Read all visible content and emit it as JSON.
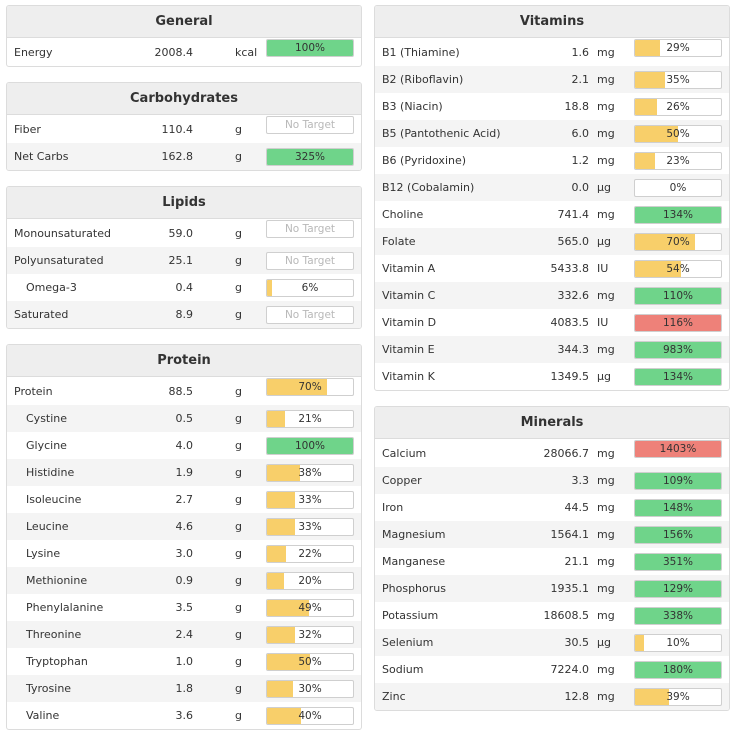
{
  "colors": {
    "ok": "#6fd48a",
    "low": "#f8cf6a",
    "high": "#ee8179"
  },
  "general": {
    "title": "General",
    "rows": [
      {
        "name": "Energy",
        "value": "2008.4",
        "unit": "kcal",
        "pct": "100%",
        "fill": 1.0,
        "status": "ok"
      }
    ]
  },
  "carbohydrates": {
    "title": "Carbohydrates",
    "rows": [
      {
        "name": "Fiber",
        "value": "110.4",
        "unit": "g",
        "pct": "No Target",
        "fill": 0,
        "status": "none"
      },
      {
        "name": "Net Carbs",
        "value": "162.8",
        "unit": "g",
        "pct": "325%",
        "fill": 1.0,
        "status": "ok"
      }
    ]
  },
  "lipids": {
    "title": "Lipids",
    "rows": [
      {
        "name": "Monounsaturated",
        "value": "59.0",
        "unit": "g",
        "pct": "No Target",
        "fill": 0,
        "status": "none"
      },
      {
        "name": "Polyunsaturated",
        "value": "25.1",
        "unit": "g",
        "pct": "No Target",
        "fill": 0,
        "status": "none"
      },
      {
        "name": "Omega-3",
        "value": "0.4",
        "unit": "g",
        "pct": "6%",
        "fill": 0.06,
        "status": "low",
        "sub": true
      },
      {
        "name": "Saturated",
        "value": "8.9",
        "unit": "g",
        "pct": "No Target",
        "fill": 0,
        "status": "none"
      }
    ]
  },
  "protein": {
    "title": "Protein",
    "rows": [
      {
        "name": "Protein",
        "value": "88.5",
        "unit": "g",
        "pct": "70%",
        "fill": 0.7,
        "status": "low"
      },
      {
        "name": "Cystine",
        "value": "0.5",
        "unit": "g",
        "pct": "21%",
        "fill": 0.21,
        "status": "low",
        "sub": true
      },
      {
        "name": "Glycine",
        "value": "4.0",
        "unit": "g",
        "pct": "100%",
        "fill": 1.0,
        "status": "ok",
        "sub": true
      },
      {
        "name": "Histidine",
        "value": "1.9",
        "unit": "g",
        "pct": "38%",
        "fill": 0.38,
        "status": "low",
        "sub": true
      },
      {
        "name": "Isoleucine",
        "value": "2.7",
        "unit": "g",
        "pct": "33%",
        "fill": 0.33,
        "status": "low",
        "sub": true
      },
      {
        "name": "Leucine",
        "value": "4.6",
        "unit": "g",
        "pct": "33%",
        "fill": 0.33,
        "status": "low",
        "sub": true
      },
      {
        "name": "Lysine",
        "value": "3.0",
        "unit": "g",
        "pct": "22%",
        "fill": 0.22,
        "status": "low",
        "sub": true
      },
      {
        "name": "Methionine",
        "value": "0.9",
        "unit": "g",
        "pct": "20%",
        "fill": 0.2,
        "status": "low",
        "sub": true
      },
      {
        "name": "Phenylalanine",
        "value": "3.5",
        "unit": "g",
        "pct": "49%",
        "fill": 0.49,
        "status": "low",
        "sub": true
      },
      {
        "name": "Threonine",
        "value": "2.4",
        "unit": "g",
        "pct": "32%",
        "fill": 0.32,
        "status": "low",
        "sub": true
      },
      {
        "name": "Tryptophan",
        "value": "1.0",
        "unit": "g",
        "pct": "50%",
        "fill": 0.5,
        "status": "low",
        "sub": true
      },
      {
        "name": "Tyrosine",
        "value": "1.8",
        "unit": "g",
        "pct": "30%",
        "fill": 0.3,
        "status": "low",
        "sub": true
      },
      {
        "name": "Valine",
        "value": "3.6",
        "unit": "g",
        "pct": "40%",
        "fill": 0.4,
        "status": "low",
        "sub": true
      }
    ]
  },
  "vitamins": {
    "title": "Vitamins",
    "rows": [
      {
        "name": "B1 (Thiamine)",
        "value": "1.6",
        "unit": "mg",
        "pct": "29%",
        "fill": 0.29,
        "status": "low"
      },
      {
        "name": "B2 (Riboflavin)",
        "value": "2.1",
        "unit": "mg",
        "pct": "35%",
        "fill": 0.35,
        "status": "low"
      },
      {
        "name": "B3 (Niacin)",
        "value": "18.8",
        "unit": "mg",
        "pct": "26%",
        "fill": 0.26,
        "status": "low"
      },
      {
        "name": "B5 (Pantothenic Acid)",
        "value": "6.0",
        "unit": "mg",
        "pct": "50%",
        "fill": 0.5,
        "status": "low"
      },
      {
        "name": "B6 (Pyridoxine)",
        "value": "1.2",
        "unit": "mg",
        "pct": "23%",
        "fill": 0.23,
        "status": "low"
      },
      {
        "name": "B12 (Cobalamin)",
        "value": "0.0",
        "unit": "µg",
        "pct": "0%",
        "fill": 0,
        "status": "low"
      },
      {
        "name": "Choline",
        "value": "741.4",
        "unit": "mg",
        "pct": "134%",
        "fill": 1.0,
        "status": "ok"
      },
      {
        "name": "Folate",
        "value": "565.0",
        "unit": "µg",
        "pct": "70%",
        "fill": 0.7,
        "status": "low"
      },
      {
        "name": "Vitamin A",
        "value": "5433.8",
        "unit": "IU",
        "pct": "54%",
        "fill": 0.54,
        "status": "low"
      },
      {
        "name": "Vitamin C",
        "value": "332.6",
        "unit": "mg",
        "pct": "110%",
        "fill": 1.0,
        "status": "ok"
      },
      {
        "name": "Vitamin D",
        "value": "4083.5",
        "unit": "IU",
        "pct": "116%",
        "fill": 1.0,
        "status": "high"
      },
      {
        "name": "Vitamin E",
        "value": "344.3",
        "unit": "mg",
        "pct": "983%",
        "fill": 1.0,
        "status": "ok"
      },
      {
        "name": "Vitamin K",
        "value": "1349.5",
        "unit": "µg",
        "pct": "134%",
        "fill": 1.0,
        "status": "ok"
      }
    ]
  },
  "minerals": {
    "title": "Minerals",
    "rows": [
      {
        "name": "Calcium",
        "value": "28066.7",
        "unit": "mg",
        "pct": "1403%",
        "fill": 1.0,
        "status": "high"
      },
      {
        "name": "Copper",
        "value": "3.3",
        "unit": "mg",
        "pct": "109%",
        "fill": 1.0,
        "status": "ok"
      },
      {
        "name": "Iron",
        "value": "44.5",
        "unit": "mg",
        "pct": "148%",
        "fill": 1.0,
        "status": "ok"
      },
      {
        "name": "Magnesium",
        "value": "1564.1",
        "unit": "mg",
        "pct": "156%",
        "fill": 1.0,
        "status": "ok"
      },
      {
        "name": "Manganese",
        "value": "21.1",
        "unit": "mg",
        "pct": "351%",
        "fill": 1.0,
        "status": "ok"
      },
      {
        "name": "Phosphorus",
        "value": "1935.1",
        "unit": "mg",
        "pct": "129%",
        "fill": 1.0,
        "status": "ok"
      },
      {
        "name": "Potassium",
        "value": "18608.5",
        "unit": "mg",
        "pct": "338%",
        "fill": 1.0,
        "status": "ok"
      },
      {
        "name": "Selenium",
        "value": "30.5",
        "unit": "µg",
        "pct": "10%",
        "fill": 0.1,
        "status": "low"
      },
      {
        "name": "Sodium",
        "value": "7224.0",
        "unit": "mg",
        "pct": "180%",
        "fill": 1.0,
        "status": "ok"
      },
      {
        "name": "Zinc",
        "value": "12.8",
        "unit": "mg",
        "pct": "39%",
        "fill": 0.39,
        "status": "low"
      }
    ]
  }
}
